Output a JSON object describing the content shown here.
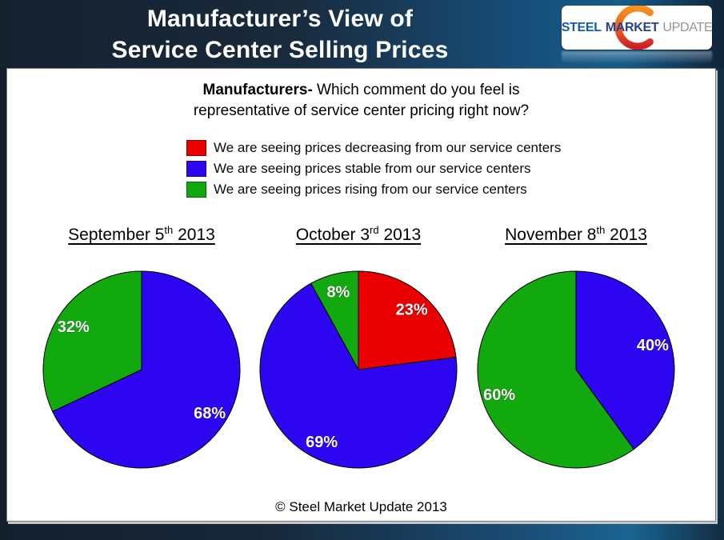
{
  "header": {
    "title_line1": "Manufacturer’s View of",
    "title_line2": "Service Center Selling Prices",
    "logo": {
      "word1": "STEEL",
      "word2": "MARKET",
      "word3": "UPDATE"
    }
  },
  "question": {
    "bold": "Manufacturers-",
    "line1_rest": " Which comment do you feel is",
    "line2": "representative of service center pricing right now?"
  },
  "legend": {
    "items": [
      {
        "color": "#EA0000",
        "label": "We are seeing prices decreasing from our service centers"
      },
      {
        "color": "#2D05F0",
        "label": "We are seeing prices stable from our service centers"
      },
      {
        "color": "#12A90E",
        "label": "We are seeing prices rising from our service centers"
      }
    ]
  },
  "colors": {
    "decreasing": "#EA0000",
    "stable": "#2D05F0",
    "rising": "#12A90E"
  },
  "footer": {
    "copyright": "© Steel Market Update 2013"
  },
  "chart_data": [
    {
      "type": "pie",
      "title": "September 5th 2013",
      "title_parts": {
        "pre": "September 5",
        "sup": "th",
        "post": " 2013"
      },
      "start_angle_deg": 0,
      "direction": "clockwise",
      "slices": [
        {
          "name": "prices stable",
          "value": 68,
          "label": "68%",
          "color": "#2D05F0"
        },
        {
          "name": "prices rising",
          "value": 32,
          "label": "32%",
          "color": "#12A90E"
        }
      ]
    },
    {
      "type": "pie",
      "title": "October 3rd 2013",
      "title_parts": {
        "pre": "October 3",
        "sup": "rd",
        "post": " 2013"
      },
      "start_angle_deg": 0,
      "direction": "clockwise",
      "slices": [
        {
          "name": "prices decreasing",
          "value": 23,
          "label": "23%",
          "color": "#EA0000"
        },
        {
          "name": "prices stable",
          "value": 69,
          "label": "69%",
          "color": "#2D05F0"
        },
        {
          "name": "prices rising",
          "value": 8,
          "label": "8%",
          "color": "#12A90E"
        }
      ]
    },
    {
      "type": "pie",
      "title": "November 8th 2013",
      "title_parts": {
        "pre": "November 8",
        "sup": "th",
        "post": " 2013"
      },
      "start_angle_deg": 0,
      "direction": "clockwise",
      "slices": [
        {
          "name": "prices stable",
          "value": 40,
          "label": "40%",
          "color": "#2D05F0"
        },
        {
          "name": "prices rising",
          "value": 60,
          "label": "60%",
          "color": "#12A90E"
        }
      ]
    }
  ]
}
